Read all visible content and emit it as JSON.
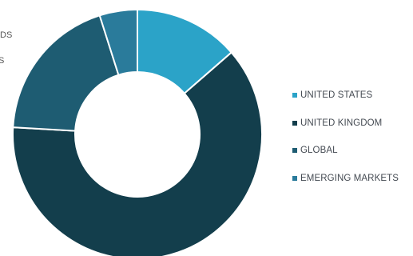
{
  "chart_data": {
    "type": "donut",
    "title": "",
    "categories": [
      "UNITED STATES",
      "UNITED KINGDOM",
      "GLOBAL",
      "EMERGING MARKETS"
    ],
    "values": [
      13.6,
      62.3,
      19.2,
      4.9
    ],
    "colors": [
      "#2ba3c8",
      "#133e4c",
      "#1e5c72",
      "#2a7b9b"
    ],
    "legend_position": "right",
    "start_angle_deg": 0,
    "grid": false
  },
  "clipped_labels": [
    "DS",
    "S"
  ]
}
